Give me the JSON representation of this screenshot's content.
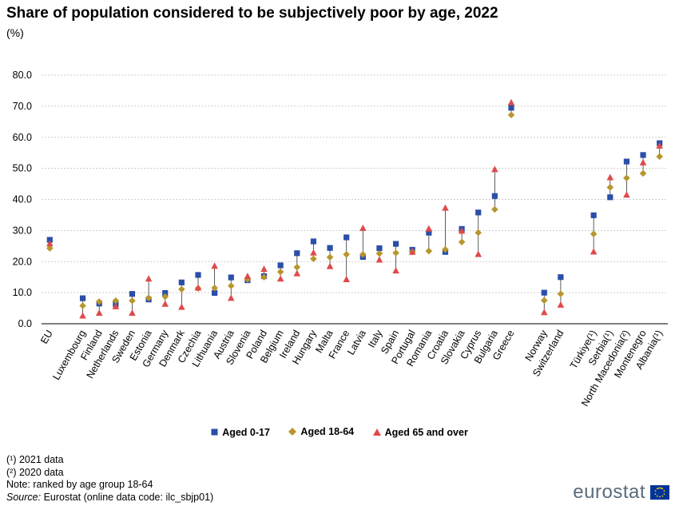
{
  "title": "Share of population considered to be subjectively poor by age, 2022",
  "subtitle": "(%)",
  "notes": [
    "(¹) 2021 data",
    "(²) 2020 data",
    "Note: ranked by age group 18-64"
  ],
  "source_label": "Source:",
  "source_text": " Eurostat (online data code: ilc_sbjp01)",
  "brand": "eurostat",
  "colors": {
    "aged_0_17": "#2a4fa8",
    "aged_18_64": "#b8962e",
    "aged_65_over": "#e04a4a",
    "grid": "#bfbfbf",
    "connector": "#333333"
  },
  "chart_data": {
    "type": "scatter",
    "ylim": [
      0,
      80
    ],
    "yticks": [
      "0.0",
      "10.0",
      "20.0",
      "30.0",
      "40.0",
      "50.0",
      "60.0",
      "70.0",
      "80.0"
    ],
    "grid": true,
    "legend_position": "bottom",
    "categories": [
      "EU",
      "",
      "Luxembourg",
      "Finland",
      "Netherlands",
      "Sweden",
      "Estonia",
      "Germany",
      "Denmark",
      "Czechia",
      "Lithuania",
      "Austria",
      "Slovenia",
      "Poland",
      "Belgium",
      "Ireland",
      "Hungary",
      "Malta",
      "France",
      "Latvia",
      "Italy",
      "Spain",
      "Portugal",
      "Romania",
      "Croatia",
      "Slovakia",
      "Cyprus",
      "Bulgaria",
      "Greece",
      "",
      "Norway",
      "Switzerland",
      "",
      "Türkiye(¹)",
      "Serbia(¹)",
      "North Macedonia(²)",
      "Montenegro",
      "Albania(¹)"
    ],
    "series": [
      {
        "name": "Aged 0-17",
        "marker": "square",
        "values": [
          27.0,
          null,
          8.2,
          6.5,
          6.3,
          9.6,
          7.8,
          9.9,
          13.3,
          15.7,
          9.9,
          14.9,
          14.0,
          15.3,
          18.8,
          22.7,
          26.5,
          24.4,
          27.8,
          21.5,
          24.3,
          25.7,
          23.8,
          29.3,
          23.1,
          30.5,
          35.8,
          41.1,
          69.5,
          null,
          10.0,
          15.0,
          null,
          34.9,
          40.7,
          52.2,
          54.3,
          58.1
        ]
      },
      {
        "name": "Aged 18-64",
        "marker": "diamond",
        "values": [
          24.3,
          null,
          5.8,
          7.1,
          7.4,
          7.4,
          8.3,
          8.7,
          11.1,
          11.4,
          11.5,
          12.2,
          14.3,
          15.0,
          16.7,
          18.2,
          20.9,
          21.4,
          22.3,
          22.3,
          22.6,
          22.8,
          23.2,
          23.4,
          23.9,
          26.3,
          29.3,
          36.8,
          67.2,
          null,
          7.5,
          9.6,
          null,
          28.9,
          43.9,
          46.9,
          48.4,
          53.8
        ]
      },
      {
        "name": "Aged 65 and over",
        "marker": "triangle",
        "values": [
          25.7,
          null,
          2.5,
          3.4,
          5.5,
          3.4,
          14.4,
          6.3,
          5.3,
          11.5,
          18.5,
          8.2,
          15.2,
          17.5,
          14.4,
          16.1,
          22.8,
          18.4,
          14.2,
          30.7,
          20.5,
          17.0,
          23.0,
          30.5,
          37.2,
          29.8,
          22.3,
          49.6,
          71.1,
          null,
          3.6,
          6.0,
          null,
          23.1,
          47.0,
          41.4,
          51.8,
          57.2
        ]
      }
    ]
  }
}
